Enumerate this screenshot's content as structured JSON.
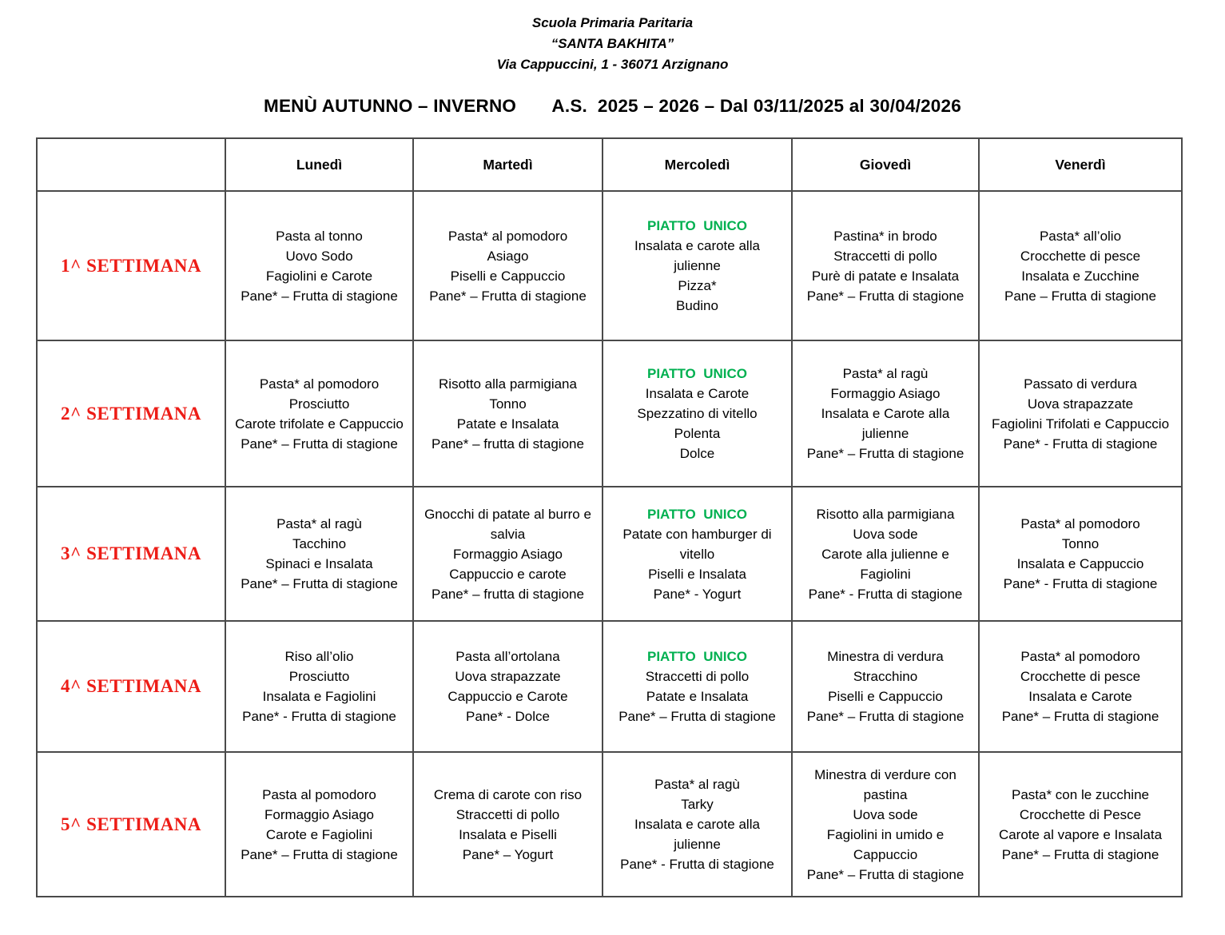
{
  "page": {
    "school_lines": [
      "Scuola Primaria Paritaria",
      "“SANTA BAKHITA”",
      "Via Cappuccini, 1 - 36071 Arzignano"
    ],
    "title": "MENÙ AUTUNNO – INVERNO       A.S.  2025 – 2026 – Dal 03/11/2025 al 30/04/2026"
  },
  "colors": {
    "week_label_red": "#ed1c16",
    "piatto_unico_green": "#00b050",
    "table_border": "#4a4a4a"
  },
  "table": {
    "day_headers": [
      "Lunedì",
      "Martedì",
      "Mercoledì",
      "Giovedì",
      "Venerdì"
    ],
    "piatto_unico_label": "PIATTO  UNICO",
    "weeks": [
      {
        "label": "1^ SETTIMANA",
        "days": [
          {
            "piatto_unico": false,
            "items": [
              "Pasta al tonno",
              "Uovo Sodo",
              "Fagiolini e Carote",
              "Pane* – Frutta di stagione"
            ]
          },
          {
            "piatto_unico": false,
            "items": [
              "Pasta* al pomodoro",
              "Asiago",
              "Piselli e Cappuccio",
              "Pane* – Frutta di stagione"
            ]
          },
          {
            "piatto_unico": true,
            "items": [
              "Insalata e carote alla julienne",
              "Pizza*",
              "Budino"
            ]
          },
          {
            "piatto_unico": false,
            "items": [
              "Pastina* in brodo",
              "Straccetti di pollo",
              "Purè di patate e Insalata",
              "Pane* – Frutta di stagione"
            ]
          },
          {
            "piatto_unico": false,
            "items": [
              "Pasta* all’olio",
              "Crocchette di pesce",
              "Insalata e Zucchine",
              "Pane – Frutta di stagione"
            ]
          }
        ]
      },
      {
        "label": "2^ SETTIMANA",
        "days": [
          {
            "piatto_unico": false,
            "items": [
              "Pasta* al pomodoro",
              "Prosciutto",
              "Carote trifolate e Cappuccio",
              "Pane* – Frutta di stagione"
            ]
          },
          {
            "piatto_unico": false,
            "items": [
              "Risotto alla parmigiana",
              "Tonno",
              "Patate e Insalata",
              "Pane* – frutta di stagione"
            ]
          },
          {
            "piatto_unico": true,
            "items": [
              "Insalata e Carote",
              "Spezzatino di vitello",
              "Polenta",
              "Dolce"
            ]
          },
          {
            "piatto_unico": false,
            "items": [
              "Pasta* al ragù",
              "Formaggio Asiago",
              "Insalata e Carote alla julienne",
              "Pane* – Frutta di stagione"
            ]
          },
          {
            "piatto_unico": false,
            "items": [
              "Passato di verdura",
              "Uova strapazzate",
              "Fagiolini Trifolati e Cappuccio",
              "Pane* - Frutta di stagione"
            ]
          }
        ]
      },
      {
        "label": "3^ SETTIMANA",
        "days": [
          {
            "piatto_unico": false,
            "items": [
              "Pasta* al ragù",
              "Tacchino",
              "Spinaci e Insalata",
              "Pane* – Frutta di stagione"
            ]
          },
          {
            "piatto_unico": false,
            "items": [
              "Gnocchi di patate al burro e salvia",
              "Formaggio Asiago",
              "Cappuccio e carote",
              "Pane* – frutta di stagione"
            ]
          },
          {
            "piatto_unico": true,
            "items": [
              "Patate con hamburger di vitello",
              "Piselli e Insalata",
              "Pane* - Yogurt"
            ]
          },
          {
            "piatto_unico": false,
            "items": [
              "Risotto alla parmigiana",
              "Uova sode",
              "Carote alla julienne e Fagiolini",
              "Pane* - Frutta di stagione"
            ]
          },
          {
            "piatto_unico": false,
            "items": [
              "Pasta* al pomodoro",
              "Tonno",
              "Insalata e Cappuccio",
              "Pane* - Frutta di stagione"
            ]
          }
        ]
      },
      {
        "label": "4^ SETTIMANA",
        "days": [
          {
            "piatto_unico": false,
            "items": [
              "Riso all’olio",
              "Prosciutto",
              "Insalata e Fagiolini",
              "Pane* - Frutta di stagione"
            ]
          },
          {
            "piatto_unico": false,
            "items": [
              "Pasta all’ortolana",
              "Uova strapazzate",
              "Cappuccio e Carote",
              "Pane* - Dolce"
            ]
          },
          {
            "piatto_unico": true,
            "items": [
              "Straccetti di pollo",
              "Patate e Insalata",
              "Pane* – Frutta di stagione"
            ]
          },
          {
            "piatto_unico": false,
            "items": [
              "Minestra di verdura",
              "Stracchino",
              "Piselli e Cappuccio",
              "Pane* – Frutta di stagione"
            ]
          },
          {
            "piatto_unico": false,
            "items": [
              "Pasta* al pomodoro",
              "Crocchette di pesce",
              "Insalata e Carote",
              "Pane* – Frutta di stagione"
            ]
          }
        ]
      },
      {
        "label": "5^ SETTIMANA",
        "days": [
          {
            "piatto_unico": false,
            "items": [
              "Pasta al pomodoro",
              "Formaggio Asiago",
              "Carote e Fagiolini",
              "Pane* – Frutta di stagione"
            ]
          },
          {
            "piatto_unico": false,
            "items": [
              "Crema di carote con riso",
              "Straccetti di pollo",
              "Insalata e Piselli",
              "Pane* – Yogurt"
            ]
          },
          {
            "piatto_unico": false,
            "items": [
              "Pasta* al ragù",
              "Tarky",
              "Insalata e carote alla julienne",
              "Pane* - Frutta di stagione"
            ]
          },
          {
            "piatto_unico": false,
            "items": [
              "Minestra di verdure con pastina",
              "Uova sode",
              "Fagiolini in umido e Cappuccio",
              "Pane* – Frutta di stagione"
            ]
          },
          {
            "piatto_unico": false,
            "items": [
              "Pasta* con le zucchine",
              "Crocchette di Pesce",
              "Carote al vapore e Insalata",
              "Pane* – Frutta di stagione"
            ]
          }
        ]
      }
    ]
  }
}
